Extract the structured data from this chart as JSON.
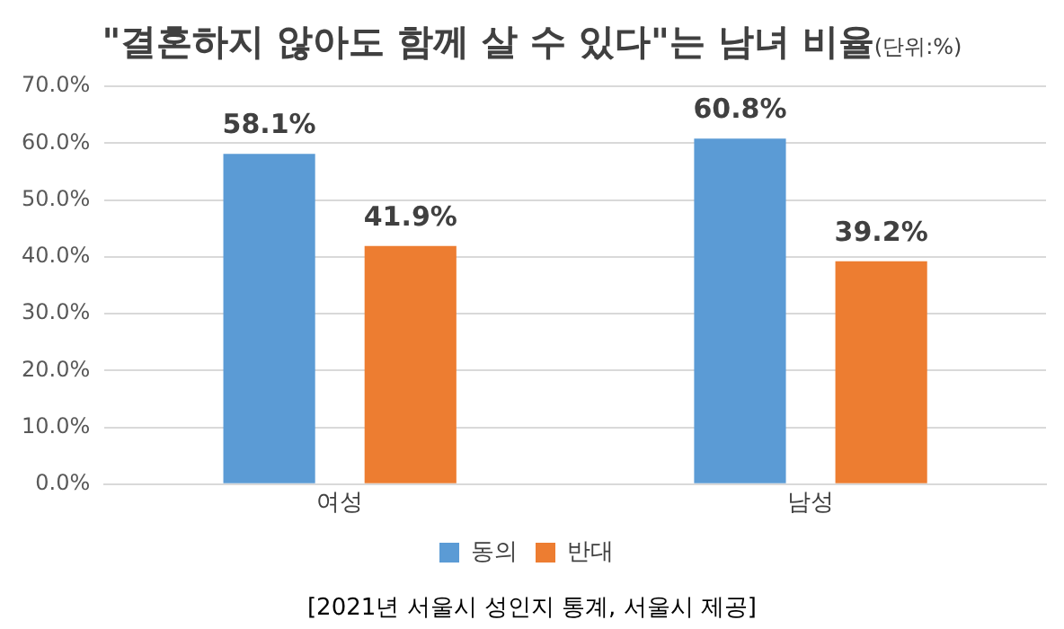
{
  "chart_data": {
    "type": "bar",
    "title": "\"결혼하지 않아도 함께 살 수 있다\"는 남녀 비율",
    "subtitle": "(단위:%)",
    "categories": [
      "여성",
      "남성"
    ],
    "series": [
      {
        "name": "동의",
        "color": "#5b9bd5",
        "values": [
          58.1,
          60.8
        ],
        "value_labels": [
          "58.1%",
          "60.8%"
        ]
      },
      {
        "name": "반대",
        "color": "#ed7d31",
        "values": [
          41.9,
          39.2
        ],
        "value_labels": [
          "41.9%",
          "39.2%"
        ]
      }
    ],
    "ylim": [
      0,
      70
    ],
    "yticks": [
      {
        "value": 0,
        "label": "0.0%"
      },
      {
        "value": 10,
        "label": "10.0%"
      },
      {
        "value": 20,
        "label": "20.0%"
      },
      {
        "value": 30,
        "label": "30.0%"
      },
      {
        "value": 40,
        "label": "40.0%"
      },
      {
        "value": 50,
        "label": "50.0%"
      },
      {
        "value": 60,
        "label": "60.0%"
      },
      {
        "value": 70,
        "label": "70.0%"
      }
    ],
    "grid": "y",
    "legend": "bottom",
    "annotations": [
      "[2021년 서울시 성인지 통계, 서울시 제공]"
    ]
  }
}
